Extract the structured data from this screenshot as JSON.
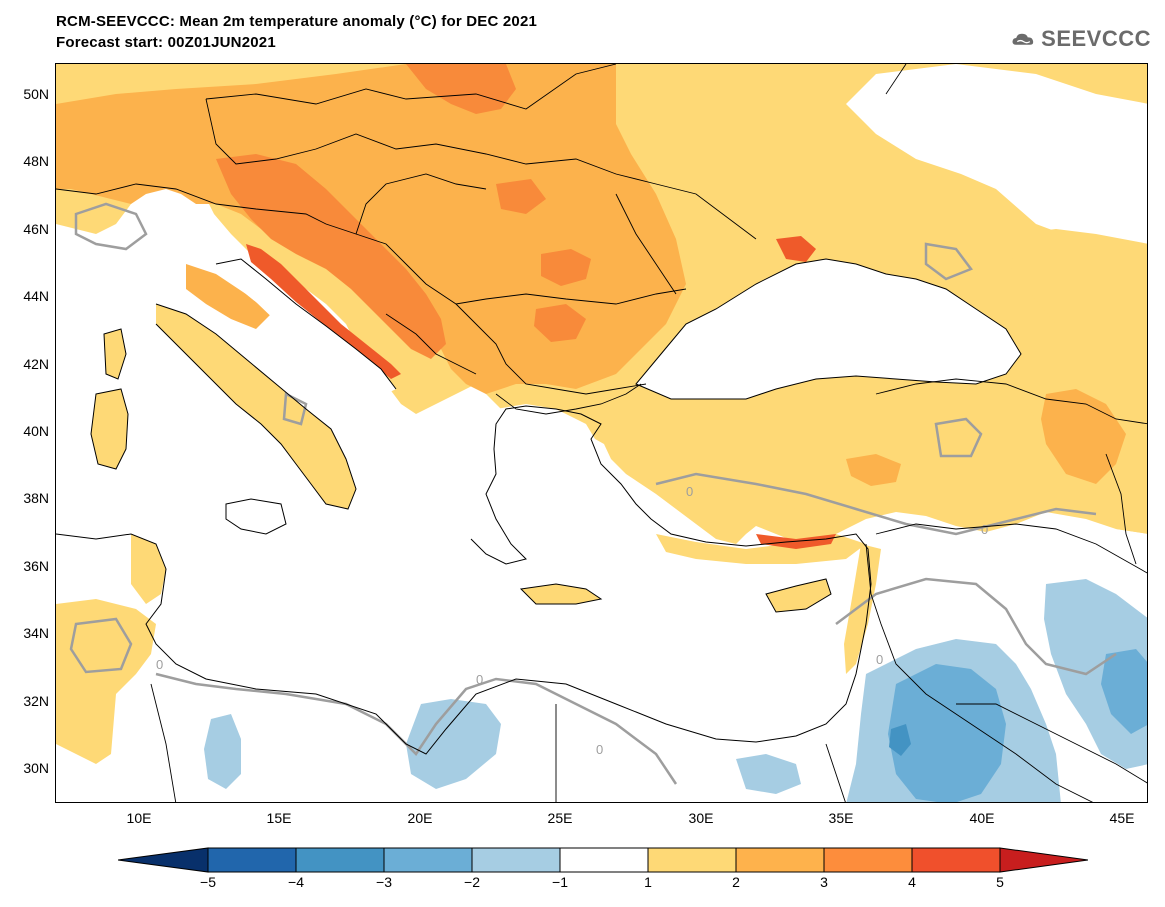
{
  "title": {
    "line1": "RCM-SEEVCCC: Mean 2m temperature anomaly (°C) for DEC 2021",
    "line2": "Forecast start: 00Z01JUN2021"
  },
  "logo": {
    "text": "SEEVCCC",
    "icon": "cloud-icon",
    "color": "#6b6b6b"
  },
  "map": {
    "lat_labels": [
      "50N",
      "48N",
      "46N",
      "44N",
      "42N",
      "40N",
      "38N",
      "36N",
      "34N",
      "32N",
      "30N"
    ],
    "lon_labels": [
      "10E",
      "15E",
      "20E",
      "25E",
      "30E",
      "35E",
      "40E",
      "45E"
    ],
    "contour_label": "0"
  },
  "colorbar": {
    "labels": [
      "−5",
      "−4",
      "−3",
      "−2",
      "−1",
      "1",
      "2",
      "3",
      "4",
      "5"
    ],
    "colors": [
      "#08306b",
      "#2166ac",
      "#4393c3",
      "#6baed6",
      "#a6cde3",
      "#ffffff",
      "#fed976",
      "#feb24c",
      "#fd8d3c",
      "#f0502c",
      "#c81e1e"
    ]
  },
  "palette": {
    "white": "#ffffff",
    "c1": "#fed976",
    "c2": "#fcb24c",
    "c3": "#f88a3a",
    "c4": "#ef5a2a",
    "b1": "#a6cde3",
    "b2": "#6baed6",
    "b3": "#4393c3",
    "contour": "#9e9e9e",
    "border": "#000000"
  }
}
